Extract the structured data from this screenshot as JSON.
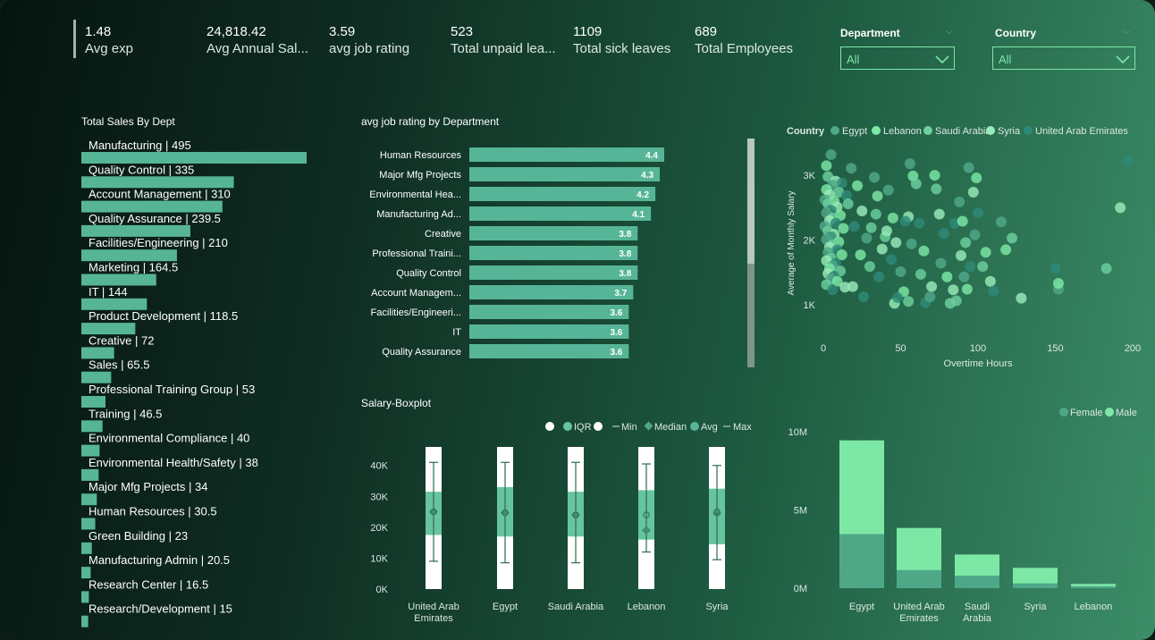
{
  "kpis": [
    {
      "value": "1.48",
      "label": "Avg exp"
    },
    {
      "value": "24,818.42",
      "label": "Avg Annual Sal..."
    },
    {
      "value": "3.59",
      "label": "avg job rating"
    },
    {
      "value": "523",
      "label": "Total unpaid lea..."
    },
    {
      "value": "1109",
      "label": "Total sick leaves"
    },
    {
      "value": "689",
      "label": "Total Employees"
    }
  ],
  "slicers": [
    {
      "title": "Department",
      "value": "All"
    },
    {
      "title": "Country",
      "value": "All"
    }
  ],
  "icons": {
    "dropdown": "chevron-down-icon",
    "caret": "caret-down-icon"
  },
  "colors": {
    "bar": "#57b597",
    "light": "#7de8a6",
    "box_white": "#ffffff",
    "box_iqr": "#66c49e"
  },
  "chart_data": [
    {
      "type": "bar",
      "title": "Total Sales By Dept",
      "orientation": "horizontal",
      "categories": [
        "Manufacturing",
        "Quality Control",
        "Account Management",
        "Quality Assurance",
        "Facilities/Engineering",
        "Marketing",
        "IT",
        "Product Development",
        "Creative",
        "Sales",
        "Professional Training Group",
        "Training",
        "Environmental Compliance",
        "Environmental Health/Safety",
        "Major Mfg Projects",
        "Human Resources",
        "Green Building",
        "Manufacturing Admin",
        "Research Center",
        "Research/Development"
      ],
      "values": [
        495,
        335,
        310,
        239.5,
        210,
        164.5,
        144,
        118.5,
        72,
        65.5,
        53,
        46.5,
        40,
        38,
        34,
        30.5,
        23,
        20.5,
        16.5,
        15
      ],
      "labels": [
        "Manufacturing | 495",
        "Quality Control | 335",
        "Account Management | 310",
        "Quality Assurance | 239.5",
        "Facilities/Engineering | 210",
        "Marketing | 164.5",
        "IT | 144",
        "Product Development | 118.5",
        "Creative | 72",
        "Sales | 65.5",
        "Professional Training Group | 53",
        "Training | 46.5",
        "Environmental Compliance | 40",
        "Environmental Health/Safety | 38",
        "Major Mfg Projects | 34",
        "Human Resources | 30.5",
        "Green Building | 23",
        "Manufacturing Admin | 20.5",
        "Research Center | 16.5",
        "Research/Development | 15"
      ]
    },
    {
      "type": "bar",
      "title": "avg job rating by Department",
      "orientation": "horizontal",
      "categories": [
        "Human Resources",
        "Major Mfg Projects",
        "Environmental Hea...",
        "Manufacturing Ad...",
        "Creative",
        "Professional Traini...",
        "Quality Control",
        "Account Managem...",
        "Facilities/Engineeri...",
        "IT",
        "Quality Assurance"
      ],
      "values": [
        4.4,
        4.3,
        4.2,
        4.1,
        3.8,
        3.8,
        3.8,
        3.7,
        3.6,
        3.6,
        3.6
      ],
      "xlim": [
        0,
        4.4
      ]
    },
    {
      "type": "scatter",
      "legend_title": "Country",
      "legend": [
        {
          "name": "Egypt",
          "color": "#4fa889"
        },
        {
          "name": "Lebanon",
          "color": "#7de8a6"
        },
        {
          "name": "Saudi Arabia",
          "color": "#6ccf9f"
        },
        {
          "name": "Syria",
          "color": "#98ebb8"
        },
        {
          "name": "United Arab Emirates",
          "color": "#2e8a78"
        }
      ],
      "xlabel": "Overtime Hours",
      "ylabel": "Average of Monthly Salary",
      "xlim": [
        0,
        200
      ],
      "ylim": [
        500,
        3500
      ],
      "xticks": [
        "0",
        "50",
        "100",
        "150",
        "200"
      ],
      "yticks": [
        "1K",
        "2K",
        "3K"
      ],
      "points": [
        [
          5,
          3320
        ],
        [
          2,
          3150
        ],
        [
          3,
          2980
        ],
        [
          8,
          2910
        ],
        [
          12,
          2880
        ],
        [
          6,
          2850
        ],
        [
          2,
          2780
        ],
        [
          10,
          2740
        ],
        [
          4,
          2700
        ],
        [
          15,
          2690
        ],
        [
          1,
          2620
        ],
        [
          7,
          2600
        ],
        [
          3,
          2560
        ],
        [
          9,
          2510
        ],
        [
          5,
          2460
        ],
        [
          2,
          2420
        ],
        [
          11,
          2380
        ],
        [
          6,
          2340
        ],
        [
          4,
          2300
        ],
        [
          8,
          2260
        ],
        [
          1,
          2210
        ],
        [
          13,
          2180
        ],
        [
          3,
          2140
        ],
        [
          7,
          2090
        ],
        [
          5,
          2050
        ],
        [
          2,
          2010
        ],
        [
          10,
          1970
        ],
        [
          6,
          1930
        ],
        [
          4,
          1890
        ],
        [
          9,
          1850
        ],
        [
          3,
          1810
        ],
        [
          12,
          1770
        ],
        [
          5,
          1720
        ],
        [
          2,
          1680
        ],
        [
          8,
          1640
        ],
        [
          6,
          1600
        ],
        [
          4,
          1560
        ],
        [
          11,
          1520
        ],
        [
          3,
          1480
        ],
        [
          7,
          1440
        ],
        [
          5,
          1400
        ],
        [
          9,
          1360
        ],
        [
          2,
          1310
        ],
        [
          14,
          1270
        ],
        [
          6,
          1230
        ],
        [
          18,
          3110
        ],
        [
          22,
          2840
        ],
        [
          16,
          2560
        ],
        [
          25,
          2450
        ],
        [
          20,
          2210
        ],
        [
          28,
          2030
        ],
        [
          24,
          1770
        ],
        [
          30,
          1590
        ],
        [
          19,
          1280
        ],
        [
          26,
          1120
        ],
        [
          33,
          2970
        ],
        [
          35,
          2680
        ],
        [
          31,
          2190
        ],
        [
          38,
          1860
        ],
        [
          36,
          1430
        ],
        [
          42,
          2770
        ],
        [
          45,
          2340
        ],
        [
          40,
          2050
        ],
        [
          47,
          1960
        ],
        [
          44,
          1700
        ],
        [
          50,
          1510
        ],
        [
          52,
          1200
        ],
        [
          55,
          1050
        ],
        [
          46,
          1020
        ],
        [
          48,
          1110
        ],
        [
          56,
          3180
        ],
        [
          58,
          2990
        ],
        [
          60,
          2870
        ],
        [
          55,
          2360
        ],
        [
          62,
          2260
        ],
        [
          57,
          1940
        ],
        [
          65,
          1830
        ],
        [
          63,
          1470
        ],
        [
          70,
          1280
        ],
        [
          66,
          1030
        ],
        [
          69,
          1120
        ],
        [
          72,
          3000
        ],
        [
          73,
          2790
        ],
        [
          75,
          2400
        ],
        [
          78,
          2100
        ],
        [
          76,
          1640
        ],
        [
          80,
          1430
        ],
        [
          82,
          1020
        ],
        [
          84,
          1230
        ],
        [
          85,
          2260
        ],
        [
          88,
          2590
        ],
        [
          90,
          2290
        ],
        [
          92,
          1960
        ],
        [
          89,
          1760
        ],
        [
          95,
          1590
        ],
        [
          91,
          1430
        ],
        [
          93,
          1240
        ],
        [
          86,
          1060
        ],
        [
          97,
          2740
        ],
        [
          100,
          2420
        ],
        [
          98,
          2080
        ],
        [
          105,
          1810
        ],
        [
          103,
          1590
        ],
        [
          108,
          1360
        ],
        [
          110,
          1210
        ],
        [
          115,
          2280
        ],
        [
          118,
          1850
        ],
        [
          122,
          2030
        ],
        [
          128,
          1100
        ],
        [
          150,
          1560
        ],
        [
          152,
          1240
        ],
        [
          152,
          1330
        ],
        [
          183,
          1560
        ],
        [
          192,
          2500
        ],
        [
          197,
          3220
        ],
        [
          94,
          3120
        ],
        [
          99,
          2960
        ],
        [
          34,
          2400
        ],
        [
          41,
          2140
        ],
        [
          53,
          2290
        ]
      ]
    },
    {
      "type": "boxplot",
      "title": "Salary-Boxplot",
      "legend": [
        "IQR",
        "Min",
        "Median",
        "Avg",
        "Max"
      ],
      "categories": [
        "United Arab Emirates",
        "Egypt",
        "Saudi Arabia",
        "Lebanon",
        "Syria"
      ],
      "yticks": [
        "0K",
        "10K",
        "20K",
        "30K",
        "40K"
      ],
      "ylim": [
        0,
        46000
      ],
      "boxes": [
        {
          "min": 9000,
          "q1": 17500,
          "median": 25000,
          "avg": 25000,
          "q3": 31500,
          "max": 41000
        },
        {
          "min": 8500,
          "q1": 17000,
          "median": 24700,
          "avg": 24700,
          "q3": 33000,
          "max": 41000
        },
        {
          "min": 8500,
          "q1": 17000,
          "median": 24000,
          "avg": 24000,
          "q3": 31500,
          "max": 41000
        },
        {
          "min": 12000,
          "q1": 16000,
          "median": 19000,
          "avg": 24000,
          "q3": 32000,
          "max": 40500
        },
        {
          "min": 9500,
          "q1": 14500,
          "median": 24500,
          "avg": 25000,
          "q3": 32500,
          "max": 40000
        }
      ]
    },
    {
      "type": "bar",
      "stacked": true,
      "categories": [
        "Egypt",
        "United Arab Emirates",
        "Saudi Arabia",
        "Syria",
        "Lebanon"
      ],
      "series": [
        {
          "name": "Female",
          "color": "#4ea888",
          "values": [
            3450000,
            1150000,
            800000,
            300000,
            120000
          ]
        },
        {
          "name": "Male",
          "color": "#7de8a6",
          "values": [
            6000000,
            2700000,
            1350000,
            1000000,
            150000
          ]
        }
      ],
      "yticks": [
        "0M",
        "5M",
        "10M"
      ],
      "ylim": [
        0,
        10000000
      ]
    }
  ]
}
